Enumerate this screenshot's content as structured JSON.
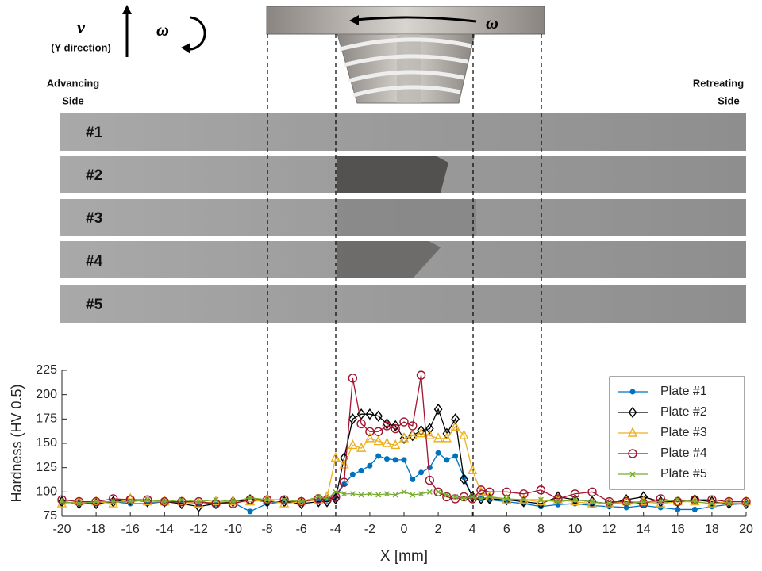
{
  "figure": {
    "speed_symbol": "v",
    "speed_direction": "(Y direction)",
    "rotation_symbol": "ω",
    "tool_rotation_symbol": "ω",
    "advancing_side": [
      "Advancing",
      "Side"
    ],
    "retreating_side": [
      "Retreating",
      "Side"
    ],
    "plates": [
      "#1",
      "#2",
      "#3",
      "#4",
      "#5"
    ]
  },
  "chart_data": {
    "type": "line",
    "x_label": "X [mm]",
    "y_label": "Hardness (HV 0.5)",
    "xlim": [
      -20,
      20
    ],
    "xticks": [
      -20,
      -18,
      -16,
      -14,
      -12,
      -10,
      -8,
      -6,
      -4,
      -2,
      0,
      2,
      4,
      6,
      8,
      10,
      12,
      14,
      16,
      18,
      20
    ],
    "ylim": [
      75,
      225
    ],
    "yticks": [
      75,
      100,
      125,
      150,
      175,
      200,
      225
    ],
    "grid": false,
    "legend": "top-right",
    "x": [
      -20,
      -19,
      -18,
      -17,
      -16,
      -15,
      -14,
      -13,
      -12,
      -11,
      -10,
      -9,
      -8,
      -7,
      -6,
      -5,
      -4.5,
      -4,
      -3.5,
      -3,
      -2.5,
      -2,
      -1.5,
      -1,
      -0.5,
      0,
      0.5,
      1,
      1.5,
      2,
      2.5,
      3,
      3.5,
      4,
      4.5,
      5,
      6,
      7,
      8,
      9,
      10,
      11,
      12,
      13,
      14,
      15,
      16,
      17,
      18,
      19,
      20
    ],
    "series": [
      {
        "name": "Plate #1",
        "color": "#0072bd",
        "marker": "dot",
        "values": [
          90,
          88,
          88,
          90,
          88,
          88,
          90,
          90,
          88,
          88,
          89,
          80,
          88,
          90,
          90,
          92,
          92,
          95,
          108,
          118,
          122,
          127,
          137,
          134,
          133,
          133,
          113,
          120,
          125,
          140,
          133,
          137,
          115,
          95,
          93,
          92,
          90,
          88,
          85,
          87,
          88,
          86,
          85,
          84,
          86,
          84,
          82,
          82,
          85,
          87,
          88
        ]
      },
      {
        "name": "Plate #2",
        "color": "#000000",
        "marker": "diamond",
        "values": [
          90,
          88,
          88,
          90,
          92,
          90,
          90,
          88,
          85,
          88,
          90,
          92,
          90,
          90,
          88,
          90,
          90,
          93,
          135,
          175,
          180,
          180,
          178,
          170,
          168,
          155,
          158,
          163,
          165,
          185,
          160,
          175,
          113,
          95,
          93,
          93,
          92,
          90,
          88,
          95,
          92,
          90,
          88,
          92,
          95,
          90,
          90,
          92,
          90,
          88,
          88
        ]
      },
      {
        "name": "Plate #3",
        "color": "#edb120",
        "marker": "triangle",
        "values": [
          88,
          90,
          90,
          88,
          93,
          90,
          90,
          90,
          88,
          90,
          90,
          90,
          92,
          88,
          90,
          92,
          95,
          135,
          128,
          148,
          145,
          155,
          152,
          150,
          148,
          155,
          158,
          160,
          158,
          155,
          155,
          167,
          158,
          122,
          100,
          95,
          92,
          92,
          90,
          92,
          90,
          88,
          88,
          90,
          90,
          88,
          90,
          90,
          88,
          90,
          90
        ]
      },
      {
        "name": "Plate #4",
        "color": "#a2142f",
        "marker": "circle",
        "values": [
          92,
          90,
          90,
          93,
          92,
          92,
          90,
          90,
          90,
          88,
          88,
          92,
          92,
          92,
          90,
          93,
          92,
          95,
          110,
          217,
          170,
          162,
          162,
          168,
          165,
          172,
          168,
          220,
          112,
          100,
          95,
          93,
          95,
          93,
          102,
          100,
          100,
          98,
          102,
          93,
          98,
          100,
          90,
          90,
          88,
          93,
          90,
          92,
          92,
          90,
          90
        ]
      },
      {
        "name": "Plate #5",
        "color": "#77ac30",
        "marker": "x",
        "values": [
          90,
          88,
          90,
          90,
          90,
          92,
          90,
          92,
          90,
          92,
          90,
          94,
          92,
          92,
          90,
          95,
          93,
          100,
          98,
          98,
          97,
          98,
          97,
          98,
          97,
          100,
          97,
          98,
          100,
          100,
          97,
          95,
          93,
          95,
          93,
          95,
          93,
          92,
          92,
          90,
          92,
          90,
          88,
          88,
          90,
          90,
          92,
          90,
          88,
          88,
          88
        ]
      }
    ]
  }
}
